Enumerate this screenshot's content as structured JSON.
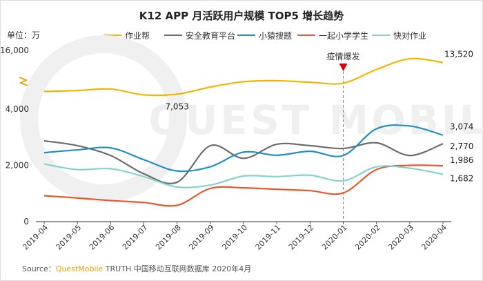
{
  "title": "K12 APP 月活跃用户规模 TOP5 增长趋势",
  "unit_label": "单位：万",
  "annotation": "疫情爆发",
  "source": {
    "prefix": "Source：",
    "brand": "QuestMobile",
    "suffix": "TRUTH 中国移动互联网数据库 2020年4月"
  },
  "watermark": "QUEST MOBILE",
  "chart_data": {
    "type": "line",
    "title": "K12 APP 月活跃用户规模 TOP5 增长趋势",
    "ylabel": "单位：万",
    "xlabel": "",
    "categories": [
      "2019-04",
      "2019-05",
      "2019-06",
      "2019-07",
      "2019-08",
      "2019-09",
      "2019-10",
      "2019-11",
      "2019-12",
      "2020-01",
      "2020-02",
      "2020-03",
      "2020-04"
    ],
    "y_ticks": [
      "0",
      "2,000",
      "4,000",
      "16,000"
    ],
    "y_axis_note": "broken axis between 4,000 and 16,000",
    "legend_position": "top",
    "grid": false,
    "series": [
      {
        "name": "作业帮",
        "color": "#f5b400",
        "values": [
          null,
          null,
          null,
          null,
          7053,
          null,
          null,
          null,
          null,
          null,
          null,
          null,
          13520
        ],
        "end_label": "13,520",
        "point_label": "7,053"
      },
      {
        "name": "安全教育平台",
        "color": "#6b6b6b",
        "values": [
          2870,
          2700,
          2350,
          1700,
          1400,
          2700,
          2250,
          2750,
          2700,
          2600,
          2800,
          2350,
          2770
        ],
        "end_label": "2,770"
      },
      {
        "name": "小猿搜题",
        "color": "#1f8dc8",
        "values": [
          2450,
          2550,
          2620,
          2200,
          1800,
          1950,
          2470,
          2360,
          2500,
          2350,
          3300,
          3400,
          3074
        ],
        "end_label": "3,074"
      },
      {
        "name": "一起小学学生",
        "color": "#e8582b",
        "values": [
          920,
          840,
          750,
          680,
          580,
          1180,
          1200,
          1150,
          1100,
          1020,
          1850,
          2000,
          1986
        ],
        "end_label": "1,986"
      },
      {
        "name": "快对作业",
        "color": "#80d3d3",
        "values": [
          2050,
          1850,
          1880,
          1600,
          1230,
          1300,
          1620,
          1600,
          1650,
          1450,
          1950,
          1900,
          1682
        ],
        "end_label": "1,682"
      }
    ]
  },
  "colors": {
    "axis": "#555555",
    "dashed_marker": "#888888",
    "annotation_arrow": "#e00000",
    "break_mark": "#f5a000",
    "watermark": "#f0f0f0"
  }
}
